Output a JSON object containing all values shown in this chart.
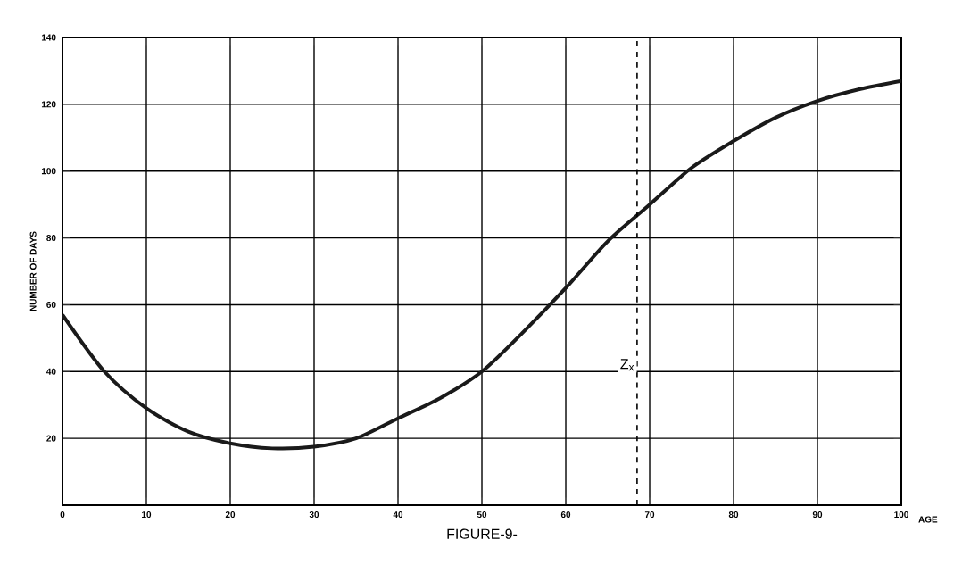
{
  "chart_data": {
    "type": "line",
    "title": "FIGURE-9-",
    "xlabel": "AGE",
    "ylabel": "NUMBER OF DAYS",
    "x": [
      0,
      5,
      10,
      15,
      20,
      25,
      30,
      35,
      40,
      45,
      50,
      55,
      60,
      65,
      70,
      75,
      80,
      85,
      90,
      95,
      100
    ],
    "series": [
      {
        "color": "#1a1a1a",
        "values": [
          57,
          40,
          29,
          22,
          18.5,
          17,
          17.5,
          20,
          26,
          32,
          40,
          52,
          65,
          79,
          90,
          101,
          109,
          116,
          121,
          124.5,
          127
        ]
      }
    ],
    "xlim": [
      0,
      100
    ],
    "ylim": [
      0,
      140
    ],
    "xticks": [
      0,
      10,
      20,
      30,
      40,
      50,
      60,
      70,
      80,
      90,
      100
    ],
    "yticks": [
      20,
      40,
      60,
      80,
      100,
      120,
      140
    ],
    "grid": true,
    "marker": "none",
    "line_style": "solid",
    "ref_lines": [
      {
        "axis": "x",
        "value": 68.5,
        "label": "Z$_{x}$",
        "line_style": "dashed"
      }
    ]
  }
}
